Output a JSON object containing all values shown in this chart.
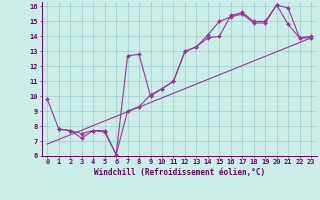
{
  "xlabel": "Windchill (Refroidissement éolien,°C)",
  "bg_color": "#cceee8",
  "line_color": "#993399",
  "grid_color": "#99cccc",
  "axis_color": "#660066",
  "tick_color": "#660066",
  "spine_color": "#660066",
  "xlim": [
    -0.5,
    23.5
  ],
  "ylim": [
    6,
    16.3
  ],
  "xticks": [
    0,
    1,
    2,
    3,
    4,
    5,
    6,
    7,
    8,
    9,
    10,
    11,
    12,
    13,
    14,
    15,
    16,
    17,
    18,
    19,
    20,
    21,
    22,
    23
  ],
  "yticks": [
    6,
    7,
    8,
    9,
    10,
    11,
    12,
    13,
    14,
    15,
    16
  ],
  "line1_x": [
    0,
    1,
    2,
    3,
    4,
    5,
    6,
    7,
    8,
    9,
    10,
    11,
    12,
    13,
    14,
    15,
    16,
    17,
    18,
    19,
    20,
    21,
    22,
    23
  ],
  "line1_y": [
    9.8,
    7.8,
    7.7,
    7.2,
    7.7,
    7.7,
    6.1,
    9.0,
    9.3,
    10.1,
    10.5,
    11.0,
    13.0,
    13.3,
    14.1,
    15.0,
    15.3,
    15.5,
    14.9,
    14.9,
    16.1,
    15.9,
    13.9,
    13.9
  ],
  "line2_x": [
    1,
    2,
    3,
    4,
    5,
    6,
    7,
    8,
    9,
    10,
    11,
    12,
    13,
    14,
    15,
    16,
    17,
    18,
    19,
    20,
    21,
    22,
    23
  ],
  "line2_y": [
    7.8,
    7.7,
    7.5,
    7.7,
    7.6,
    6.1,
    12.7,
    12.8,
    10.0,
    10.5,
    11.0,
    13.0,
    13.3,
    13.9,
    14.0,
    15.4,
    15.6,
    15.0,
    15.0,
    16.1,
    14.8,
    13.9,
    14.0
  ],
  "line3_x": [
    0,
    23
  ],
  "line3_y": [
    6.8,
    13.9
  ],
  "xlabel_fontsize": 5.5,
  "tick_fontsize": 5.0
}
